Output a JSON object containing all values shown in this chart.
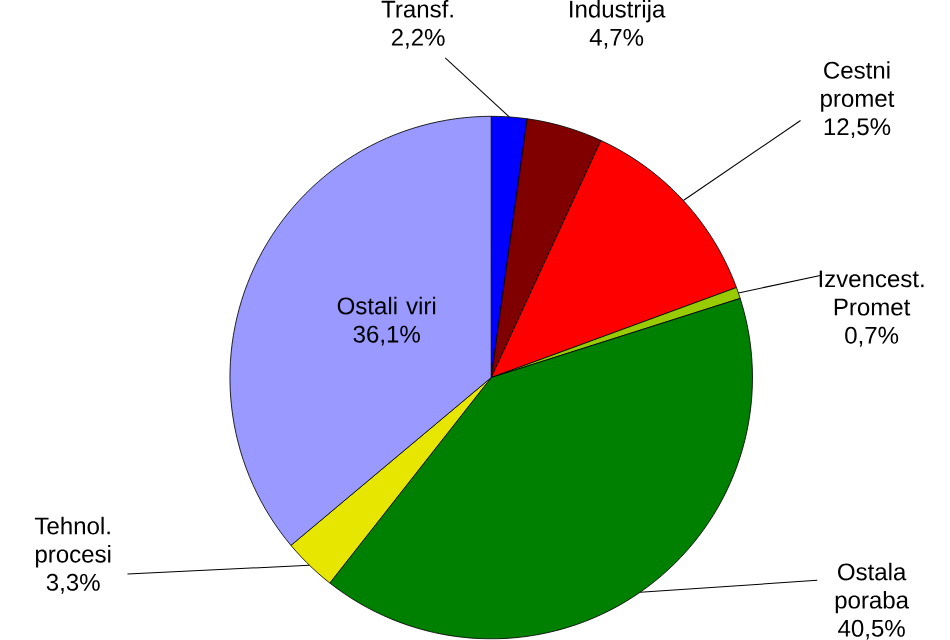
{
  "chart_data": {
    "type": "pie",
    "categories": [
      "Transf.",
      "Industrija",
      "Cestni promet",
      "Izvencest. Promet",
      "Ostala poraba",
      "Tehnol. procesi",
      "Ostali viri"
    ],
    "values": [
      2.2,
      4.7,
      12.5,
      0.7,
      40.5,
      3.3,
      36.1
    ],
    "value_labels": [
      "2,2%",
      "4,7%",
      "12,5%",
      "0,7%",
      "40,5%",
      "3,3%",
      "36,1%"
    ],
    "colors": [
      "#0000ff",
      "#800000",
      "#ff0000",
      "#99cc00",
      "#008000",
      "#e6e600",
      "#9999ff"
    ]
  }
}
